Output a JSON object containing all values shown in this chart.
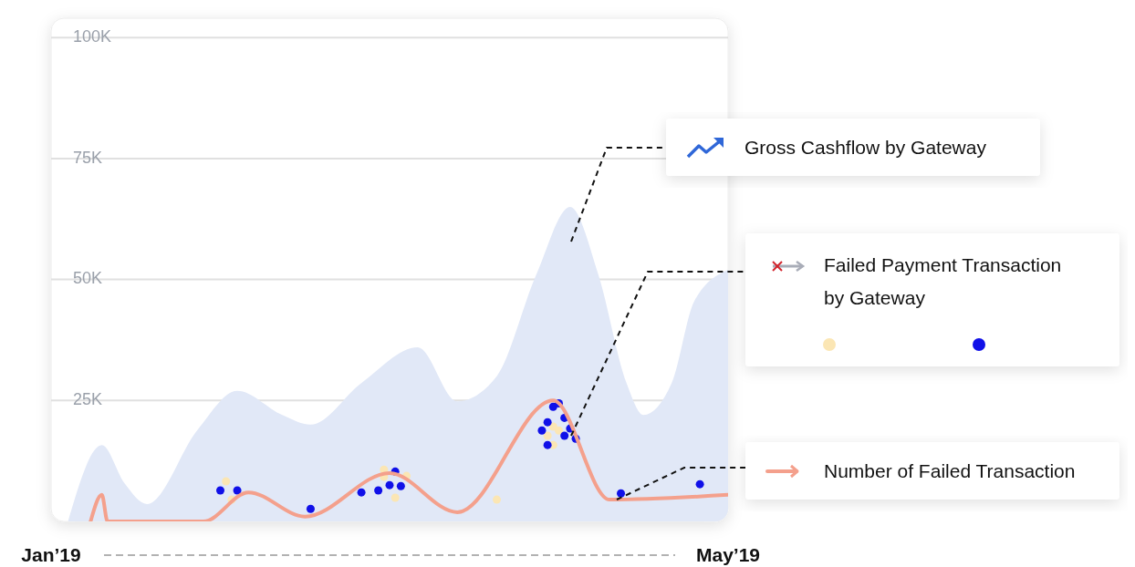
{
  "chart_data": {
    "type": "area",
    "x": [
      "2019-01-04",
      "2019-01-10",
      "2019-01-14",
      "2019-01-18",
      "2019-01-27",
      "2019-02-03",
      "2019-02-11",
      "2019-02-16",
      "2019-02-25",
      "2019-03-07",
      "2019-03-14",
      "2019-03-21",
      "2019-03-28",
      "2019-04-03",
      "2019-04-08",
      "2019-04-13",
      "2019-04-16",
      "2019-04-21",
      "2019-04-25",
      "2019-05-01"
    ],
    "series": [
      {
        "name": "Gross Cashflow by Gateway",
        "color": "#e1e8f7",
        "values": [
          0,
          15800,
          7900,
          3600,
          19000,
          27000,
          22000,
          20000,
          28600,
          36000,
          24800,
          30000,
          51000,
          65000,
          51000,
          28600,
          22000,
          28600,
          45500,
          52000
        ]
      },
      {
        "type": "scatter",
        "marker": "circle",
        "color": "#fbe6b4",
        "x": [
          "2019-02-01",
          "2019-02-02",
          "2019-03-01",
          "2019-03-01",
          "2019-03-03",
          "2019-03-05",
          "2019-03-21",
          "2019-03-30",
          "2019-03-31",
          "2019-03-31",
          "2019-04-01"
        ],
        "values": [
          8300,
          4500,
          10700,
          9200,
          4900,
          9400,
          4500,
          17700,
          19600,
          15800,
          18800
        ]
      },
      {
        "type": "scatter",
        "marker": "circle",
        "color": "#1010e8",
        "x": [
          "2019-01-31",
          "2019-02-03",
          "2019-02-16",
          "2019-02-25",
          "2019-02-28",
          "2019-03-02",
          "2019-03-03",
          "2019-03-04",
          "2019-03-29",
          "2019-03-30",
          "2019-03-31",
          "2019-04-01",
          "2019-04-02",
          "2019-04-02",
          "2019-04-03",
          "2019-04-04",
          "2019-03-30",
          "2019-04-12",
          "2019-04-26"
        ],
        "values": [
          6400,
          6400,
          2600,
          6000,
          6400,
          7500,
          10300,
          7300,
          18800,
          20500,
          23700,
          24400,
          21400,
          17700,
          19200,
          17100,
          15800,
          5800,
          7700
        ]
      },
      {
        "name": "Number of Failed Transaction",
        "type": "line",
        "color": "#f4a08c",
        "x": [
          "2019-01-08",
          "2019-01-10",
          "2019-01-11",
          "2019-01-28",
          "2019-02-05",
          "2019-02-15",
          "2019-03-02",
          "2019-03-14",
          "2019-03-31",
          "2019-04-10",
          "2019-05-01"
        ],
        "values": [
          0,
          5500,
          0,
          0,
          6000,
          1000,
          10000,
          1900,
          25000,
          4500,
          5500
        ]
      }
    ],
    "annotations": [
      "Failed Payment Transaction by Gateway"
    ],
    "xlim": [
      "2019-01-01",
      "2019-05-01"
    ],
    "xticks": [
      {
        "value": "2019-01-01",
        "label": "Jan’19"
      },
      {
        "value": "2019-05-01",
        "label": "May’19"
      }
    ],
    "ylim": [
      0,
      104000
    ],
    "yticks": [
      {
        "value": 25000,
        "label": "25K"
      },
      {
        "value": 50000,
        "label": "50K"
      },
      {
        "value": 75000,
        "label": "75K"
      },
      {
        "value": 100000,
        "label": "100K"
      }
    ],
    "grid": true,
    "legend": "right",
    "line_style": "solid"
  }
}
